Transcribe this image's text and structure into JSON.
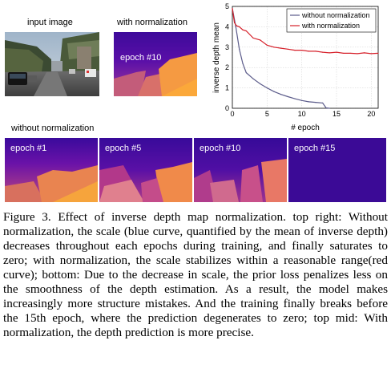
{
  "panels": {
    "input_label": "input image",
    "with_norm_label": "with normalization",
    "with_norm_epoch": "epoch #10",
    "without_norm_label": "without normalization",
    "without_norm_epochs": [
      "epoch #1",
      "epoch #5",
      "epoch #10",
      "epoch #15"
    ]
  },
  "chart_data": {
    "type": "line",
    "xlabel": "# epoch",
    "ylabel": "inverse depth mean",
    "xlim": [
      0,
      21
    ],
    "ylim": [
      0,
      5
    ],
    "xticks": [
      0,
      5,
      10,
      15,
      20
    ],
    "yticks": [
      0,
      1,
      2,
      3,
      4,
      5
    ],
    "grid": true,
    "legend": "top-right",
    "series": [
      {
        "name": "without normalization",
        "color": "#5b5b8a",
        "x": [
          0,
          0.5,
          1,
          1.5,
          2,
          3,
          4,
          5,
          6,
          7,
          8,
          9,
          10,
          11,
          12,
          13,
          13.5,
          14
        ],
        "y": [
          4.9,
          4.0,
          2.9,
          2.2,
          1.75,
          1.45,
          1.2,
          1.0,
          0.82,
          0.68,
          0.57,
          0.47,
          0.38,
          0.32,
          0.29,
          0.26,
          0.02,
          0.0
        ]
      },
      {
        "name": "with normalization",
        "color": "#d6202a",
        "x": [
          0,
          0.3,
          0.6,
          1,
          1.5,
          2,
          3,
          4,
          5,
          6,
          7,
          8,
          9,
          10,
          11,
          12,
          13,
          14,
          15,
          16,
          17,
          18,
          19,
          20,
          21
        ],
        "y": [
          4.9,
          4.2,
          4.05,
          4.0,
          3.85,
          3.8,
          3.45,
          3.35,
          3.1,
          3.0,
          2.95,
          2.9,
          2.85,
          2.85,
          2.8,
          2.8,
          2.75,
          2.72,
          2.75,
          2.7,
          2.7,
          2.68,
          2.72,
          2.68,
          2.7
        ]
      }
    ]
  },
  "caption": {
    "text": "Figure 3. Effect of inverse depth map normalization. top right: Without normalization, the scale (blue curve, quantified by the mean of inverse depth) decreases throughout each epochs during training, and finally saturates to zero; with normalization, the scale stabilizes within a reasonable range(red curve); bottom: Due to the decrease in scale, the prior loss penalizes less on the smoothness of the depth estimation. As a result, the model makes increasingly more structure mistakes. And the training finally breaks before the 15th epoch, where the prediction degenerates to zero; top mid: With normalization, the depth prediction is more precise."
  }
}
